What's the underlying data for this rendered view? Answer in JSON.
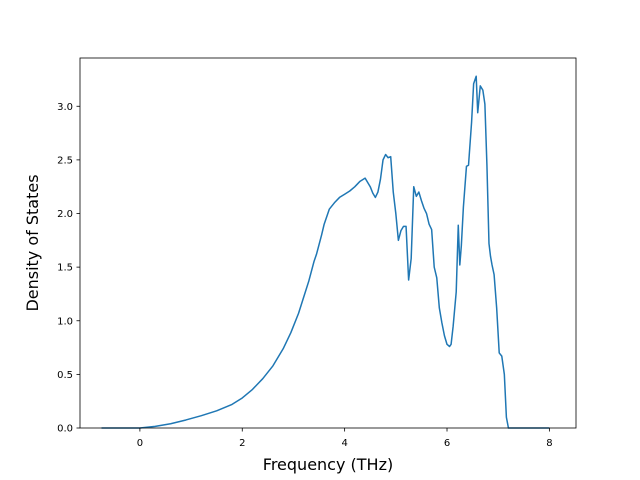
{
  "chart_data": {
    "type": "line",
    "title": "",
    "xlabel": "Frequency (THz)",
    "ylabel": "Density of States",
    "xlim": [
      -1.17,
      8.52
    ],
    "ylim": [
      0.0,
      3.45
    ],
    "xticks": [
      0,
      2,
      4,
      6,
      8
    ],
    "yticks": [
      0.0,
      0.5,
      1.0,
      1.5,
      2.0,
      2.5,
      3.0
    ],
    "xtick_labels": [
      "0",
      "2",
      "4",
      "6",
      "8"
    ],
    "ytick_labels": [
      "0.0",
      "0.5",
      "1.0",
      "1.5",
      "2.0",
      "2.5",
      "3.0"
    ],
    "grid": false,
    "legend": "none",
    "series": [
      {
        "color": "#1f77b4",
        "x": [
          -0.75,
          0.0,
          0.3,
          0.6,
          0.9,
          1.2,
          1.5,
          1.8,
          2.0,
          2.2,
          2.4,
          2.6,
          2.8,
          2.95,
          3.1,
          3.2,
          3.3,
          3.4,
          3.45,
          3.55,
          3.6,
          3.7,
          3.8,
          3.9,
          4.0,
          4.1,
          4.2,
          4.3,
          4.4,
          4.5,
          4.55,
          4.6,
          4.65,
          4.7,
          4.75,
          4.8,
          4.85,
          4.9,
          4.95,
          5.0,
          5.05,
          5.1,
          5.15,
          5.2,
          5.25,
          5.3,
          5.35,
          5.4,
          5.45,
          5.5,
          5.55,
          5.6,
          5.65,
          5.7,
          5.75,
          5.8,
          5.85,
          5.9,
          5.95,
          6.0,
          6.05,
          6.08,
          6.12,
          6.18,
          6.22,
          6.25,
          6.28,
          6.32,
          6.38,
          6.42,
          6.48,
          6.52,
          6.57,
          6.6,
          6.65,
          6.7,
          6.74,
          6.78,
          6.82,
          6.85,
          6.88,
          6.92,
          6.97,
          7.02,
          7.07,
          7.12,
          7.16,
          7.2,
          7.25,
          7.3,
          7.33,
          7.37,
          8.0
        ],
        "y": [
          0.0,
          0.0,
          0.015,
          0.04,
          0.075,
          0.115,
          0.16,
          0.22,
          0.28,
          0.36,
          0.46,
          0.58,
          0.74,
          0.89,
          1.07,
          1.22,
          1.37,
          1.55,
          1.62,
          1.8,
          1.9,
          2.04,
          2.1,
          2.15,
          2.18,
          2.21,
          2.25,
          2.3,
          2.33,
          2.25,
          2.19,
          2.15,
          2.2,
          2.32,
          2.5,
          2.55,
          2.52,
          2.53,
          2.2,
          2.0,
          1.75,
          1.84,
          1.88,
          1.88,
          1.38,
          1.58,
          2.25,
          2.16,
          2.2,
          2.12,
          2.05,
          2.0,
          1.9,
          1.85,
          1.5,
          1.4,
          1.12,
          0.98,
          0.86,
          0.78,
          0.76,
          0.78,
          0.95,
          1.27,
          1.89,
          1.52,
          1.7,
          2.06,
          2.44,
          2.45,
          2.85,
          3.21,
          3.28,
          2.94,
          3.19,
          3.15,
          3.02,
          2.45,
          1.72,
          1.6,
          1.52,
          1.43,
          1.12,
          0.7,
          0.67,
          0.5,
          0.1,
          0.0,
          0.0,
          0.0,
          0.0,
          0.0,
          0.0
        ]
      }
    ]
  }
}
